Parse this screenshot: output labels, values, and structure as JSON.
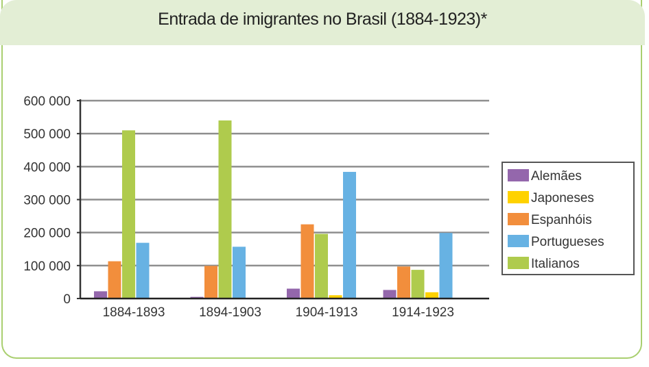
{
  "chart_data": {
    "type": "bar",
    "title": "Entrada de imigrantes no Brasil (1884-1923)*",
    "xlabel": "",
    "ylabel": "",
    "ylim": [
      0,
      600000
    ],
    "yticks": [
      0,
      100000,
      200000,
      300000,
      400000,
      500000,
      600000
    ],
    "ytick_labels": [
      "0",
      "100 000",
      "200 000",
      "300 000",
      "400 000",
      "500 000",
      "600 000"
    ],
    "grid": true,
    "legend_position": "right",
    "categories": [
      "1884-1893",
      "1894-1903",
      "1904-1913",
      "1914-1923"
    ],
    "series": [
      {
        "name": "Alemães",
        "color": "#9467ac",
        "values": [
          22000,
          5000,
          30000,
          26000
        ]
      },
      {
        "name": "Espanhóis",
        "color": "#f28e3c",
        "values": [
          113000,
          99000,
          225000,
          97000
        ]
      },
      {
        "name": "Italianos",
        "color": "#afcb4d",
        "values": [
          510000,
          540000,
          196000,
          87000
        ]
      },
      {
        "name": "Japoneses",
        "color": "#ffd200",
        "values": [
          null,
          null,
          10000,
          19000
        ]
      },
      {
        "name": "Portugueses",
        "color": "#67b2e3",
        "values": [
          169000,
          157000,
          384000,
          199000
        ]
      }
    ],
    "legend_order": [
      "Alemães",
      "Japoneses",
      "Espanhóis",
      "Portugueses",
      "Italianos"
    ]
  }
}
